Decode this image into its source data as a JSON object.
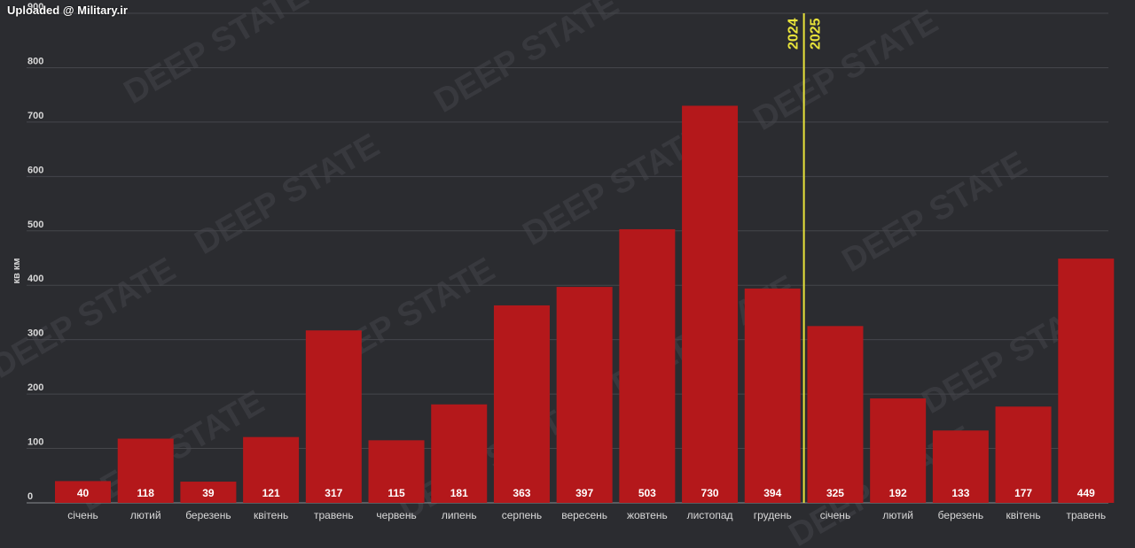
{
  "header": {
    "upload_caption": "Uploaded @ Military.ir"
  },
  "watermark": {
    "text": "DEEP STATE"
  },
  "colors": {
    "background": "#2b2c30",
    "bar": "#b4181b",
    "divider": "#e8e33a",
    "grid": "#45464b",
    "text": "#ffffff",
    "axis_text": "#d8d8d8"
  },
  "chart_data": {
    "type": "bar",
    "title": "",
    "xlabel": "",
    "ylabel": "кв км",
    "ylim": [
      0,
      900
    ],
    "yticks": [
      0,
      100,
      200,
      300,
      400,
      500,
      600,
      700,
      800,
      900
    ],
    "grid": true,
    "categories": [
      "січень",
      "лютий",
      "березень",
      "квітень",
      "травень",
      "червень",
      "липень",
      "серпень",
      "вересень",
      "жовтень",
      "листопад",
      "грудень",
      "січень",
      "лютий",
      "березень",
      "квітень",
      "травень"
    ],
    "values": [
      40,
      118,
      39,
      121,
      317,
      115,
      181,
      363,
      397,
      503,
      730,
      394,
      325,
      192,
      133,
      177,
      449
    ],
    "data_labels": [
      "40",
      "118",
      "39",
      "121",
      "317",
      "115",
      "181",
      "363",
      "397",
      "503",
      "730",
      "394",
      "325",
      "192",
      "133",
      "177",
      "449"
    ],
    "year_divider": {
      "after_index": 11,
      "left_label": "2024",
      "right_label": "2025"
    }
  }
}
